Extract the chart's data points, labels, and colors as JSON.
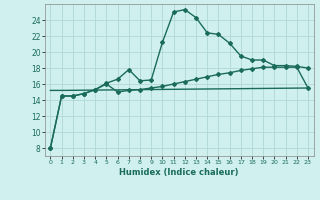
{
  "xlabel": "Humidex (Indice chaleur)",
  "background_color": "#cff0ee",
  "grid_color": "#b0d8d4",
  "line_color": "#1a6b5a",
  "xlim": [
    -0.5,
    23.5
  ],
  "ylim": [
    7,
    26
  ],
  "xticks": [
    0,
    1,
    2,
    3,
    4,
    5,
    6,
    7,
    8,
    9,
    10,
    11,
    12,
    13,
    14,
    15,
    16,
    17,
    18,
    19,
    20,
    21,
    22,
    23
  ],
  "yticks": [
    8,
    10,
    12,
    14,
    16,
    18,
    20,
    22,
    24
  ],
  "series1_x": [
    0,
    1,
    2,
    3,
    4,
    5,
    6,
    7,
    8,
    9,
    10,
    11,
    12,
    13,
    14,
    15,
    16,
    17,
    18,
    19,
    20,
    21,
    22,
    23
  ],
  "series1_y": [
    8,
    14.5,
    14.5,
    14.8,
    15.3,
    16.1,
    16.6,
    17.8,
    16.4,
    16.5,
    21.2,
    25.0,
    25.3,
    24.3,
    22.4,
    22.2,
    21.1,
    19.5,
    19.0,
    19.0,
    18.3,
    18.3,
    18.2,
    18.0
  ],
  "series2_x": [
    0,
    1,
    2,
    3,
    4,
    5,
    6,
    7,
    8,
    9,
    10,
    11,
    12,
    13,
    14,
    15,
    16,
    17,
    18,
    19,
    20,
    21,
    22,
    23
  ],
  "series2_y": [
    8,
    14.5,
    14.5,
    14.8,
    15.3,
    16.0,
    15.0,
    15.2,
    15.3,
    15.5,
    15.7,
    16.0,
    16.3,
    16.6,
    16.9,
    17.2,
    17.4,
    17.7,
    17.9,
    18.1,
    18.1,
    18.1,
    18.1,
    15.5
  ],
  "series3_x": [
    0,
    1,
    23
  ],
  "series3_y": [
    15.2,
    15.2,
    15.5
  ],
  "marker": "D",
  "markersize": 2.0,
  "linewidth": 1.0
}
